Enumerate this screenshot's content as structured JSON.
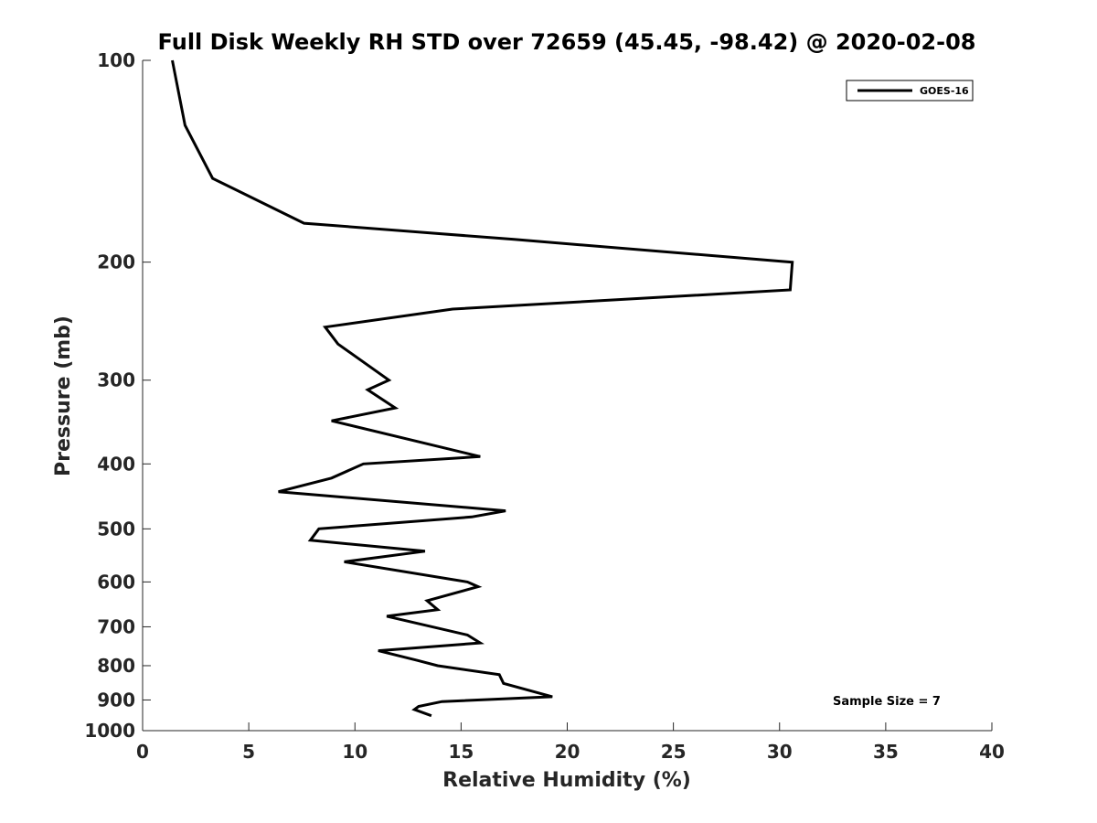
{
  "chart_data": {
    "type": "line",
    "title": "Full Disk Weekly RH STD over 72659 (45.45, -98.42) @ 2020-02-08",
    "xlabel": "Relative Humidity (%)",
    "ylabel": "Pressure (mb)",
    "xlim": [
      0,
      40
    ],
    "ylim": [
      100,
      1000
    ],
    "y_scale": "log",
    "y_reversed": true,
    "grid": false,
    "legend_position": "top-right",
    "x_ticks": [
      0,
      5,
      10,
      15,
      20,
      25,
      30,
      35,
      40
    ],
    "x_tick_labels": [
      "0",
      "5",
      "10",
      "15",
      "20",
      "25",
      "30",
      "35",
      "40"
    ],
    "y_ticks": [
      100,
      200,
      300,
      400,
      500,
      600,
      700,
      800,
      900,
      1000
    ],
    "y_tick_labels": [
      "100",
      "200",
      "300",
      "400",
      "500",
      "600",
      "700",
      "800",
      "900",
      "1000"
    ],
    "series": [
      {
        "name": "GOES-16",
        "color": "#000000",
        "x": [
          1.4,
          2.0,
          3.3,
          7.6,
          17.5,
          30.6,
          30.5,
          14.6,
          8.6,
          9.2,
          11.6,
          10.6,
          11.9,
          8.9,
          15.9,
          10.4,
          8.9,
          6.4,
          17.1,
          15.5,
          8.3,
          7.9,
          13.3,
          9.5,
          15.3,
          15.8,
          13.4,
          13.9,
          11.5,
          15.3,
          15.9,
          11.1,
          12.9,
          13.9,
          16.8,
          17.0,
          19.3,
          14.1,
          13.0,
          12.8,
          13.6
        ],
        "y": [
          100,
          125,
          150,
          175,
          185,
          200,
          220,
          235,
          250,
          265,
          300,
          310,
          330,
          345,
          390,
          400,
          420,
          440,
          470,
          480,
          500,
          520,
          540,
          560,
          600,
          610,
          640,
          660,
          675,
          720,
          740,
          760,
          785,
          800,
          825,
          850,
          890,
          905,
          920,
          930,
          950
        ]
      }
    ],
    "annotations": [
      "Sample Size = 7"
    ]
  }
}
